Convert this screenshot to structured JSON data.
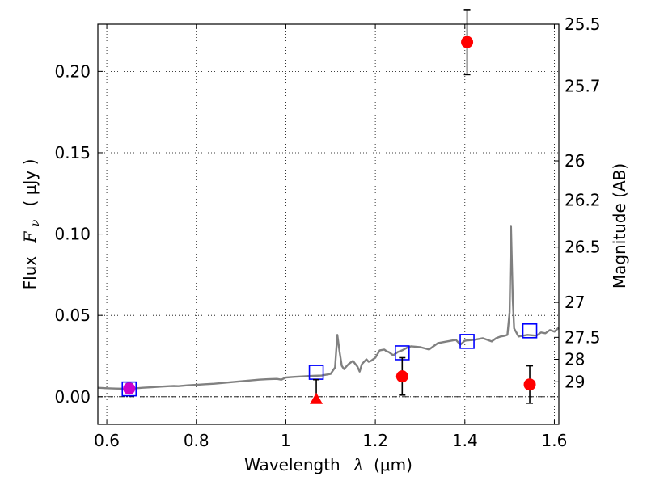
{
  "chart_data": {
    "type": "scatter",
    "x_label_text": "Wavelength",
    "x_label_symbol": "λ",
    "x_label_unit": "(μm)",
    "y_label_text": "Flux",
    "y_label_symbol": "F",
    "y_label_subscript": "ν",
    "y_label_unit": "( μJy )",
    "y2_label": "Magnitude (AB)",
    "xlim": [
      0.58,
      1.61
    ],
    "ylim": [
      -0.017,
      0.229
    ],
    "x_ticks": [
      0.6,
      0.8,
      1.0,
      1.2,
      1.4,
      1.6
    ],
    "x_tick_labels": [
      "0.6",
      "0.8",
      "1",
      "1.2",
      "1.4",
      "1.6"
    ],
    "y_ticks": [
      0.0,
      0.05,
      0.1,
      0.15,
      0.2
    ],
    "y_tick_labels": [
      "0.00",
      "0.05",
      "0.10",
      "0.15",
      "0.20"
    ],
    "y2_ticks": [
      {
        "label": "25.5",
        "flux": 0.229
      },
      {
        "label": "25.7",
        "flux": 0.191
      },
      {
        "label": "26",
        "flux": 0.145
      },
      {
        "label": "26.2",
        "flux": 0.121
      },
      {
        "label": "26.5",
        "flux": 0.092
      },
      {
        "label": "27",
        "flux": 0.058
      },
      {
        "label": "27.5",
        "flux": 0.0365
      },
      {
        "label": "28",
        "flux": 0.023
      },
      {
        "label": "29",
        "flux": 0.0092
      }
    ],
    "grid": true,
    "colors": {
      "model": "#808080",
      "observed": "#ff0000",
      "model_phot": "#0000ff",
      "magenta": "#cc00cc",
      "error": "#000000"
    },
    "model_spectrum": {
      "x": [
        0.58,
        0.6,
        0.62,
        0.65,
        0.68,
        0.7,
        0.72,
        0.74,
        0.75,
        0.76,
        0.78,
        0.8,
        0.82,
        0.84,
        0.86,
        0.88,
        0.9,
        0.92,
        0.94,
        0.96,
        0.98,
        0.99,
        1.0,
        1.02,
        1.04,
        1.06,
        1.08,
        1.1,
        1.11,
        1.115,
        1.12,
        1.125,
        1.13,
        1.14,
        1.15,
        1.16,
        1.165,
        1.17,
        1.18,
        1.185,
        1.19,
        1.2,
        1.21,
        1.22,
        1.225,
        1.23,
        1.24,
        1.25,
        1.26,
        1.27,
        1.28,
        1.3,
        1.32,
        1.33,
        1.34,
        1.36,
        1.38,
        1.39,
        1.4,
        1.42,
        1.44,
        1.46,
        1.47,
        1.48,
        1.49,
        1.495,
        1.5,
        1.503,
        1.507,
        1.51,
        1.52,
        1.54,
        1.56,
        1.57,
        1.58,
        1.59,
        1.6,
        1.61
      ],
      "y": [
        0.0055,
        0.0052,
        0.005,
        0.0048,
        0.0055,
        0.0058,
        0.0062,
        0.0065,
        0.0066,
        0.0065,
        0.007,
        0.0073,
        0.0077,
        0.008,
        0.0085,
        0.009,
        0.0095,
        0.01,
        0.0105,
        0.0108,
        0.011,
        0.0105,
        0.0118,
        0.0122,
        0.0125,
        0.0128,
        0.013,
        0.014,
        0.018,
        0.038,
        0.028,
        0.019,
        0.017,
        0.02,
        0.022,
        0.0185,
        0.0155,
        0.02,
        0.023,
        0.0215,
        0.022,
        0.024,
        0.0285,
        0.029,
        0.028,
        0.0275,
        0.0255,
        0.0275,
        0.0285,
        0.03,
        0.031,
        0.0305,
        0.029,
        0.031,
        0.033,
        0.034,
        0.035,
        0.032,
        0.0345,
        0.035,
        0.036,
        0.034,
        0.036,
        0.037,
        0.0375,
        0.038,
        0.052,
        0.105,
        0.06,
        0.042,
        0.037,
        0.038,
        0.0375,
        0.0395,
        0.039,
        0.041,
        0.04,
        0.0425
      ]
    },
    "observed_points": [
      {
        "x": 0.65,
        "y": 0.005,
        "err": 0.003,
        "marker": "circle",
        "color": "magenta"
      },
      {
        "x": 1.405,
        "y": 0.218,
        "err": 0.02,
        "marker": "circle",
        "color": "observed"
      },
      {
        "x": 1.26,
        "y": 0.0125,
        "err": 0.0115,
        "marker": "circle",
        "color": "observed"
      },
      {
        "x": 1.545,
        "y": 0.0075,
        "err": 0.0115,
        "marker": "circle",
        "color": "observed"
      },
      {
        "x": 1.068,
        "y": -0.0015,
        "err_up": 0.012,
        "err_down": 0.0,
        "marker": "triangle",
        "color": "observed"
      }
    ],
    "model_photometry": [
      {
        "x": 0.65,
        "y": 0.0048
      },
      {
        "x": 1.068,
        "y": 0.015
      },
      {
        "x": 1.26,
        "y": 0.027
      },
      {
        "x": 1.405,
        "y": 0.034
      },
      {
        "x": 1.545,
        "y": 0.0405
      }
    ]
  }
}
